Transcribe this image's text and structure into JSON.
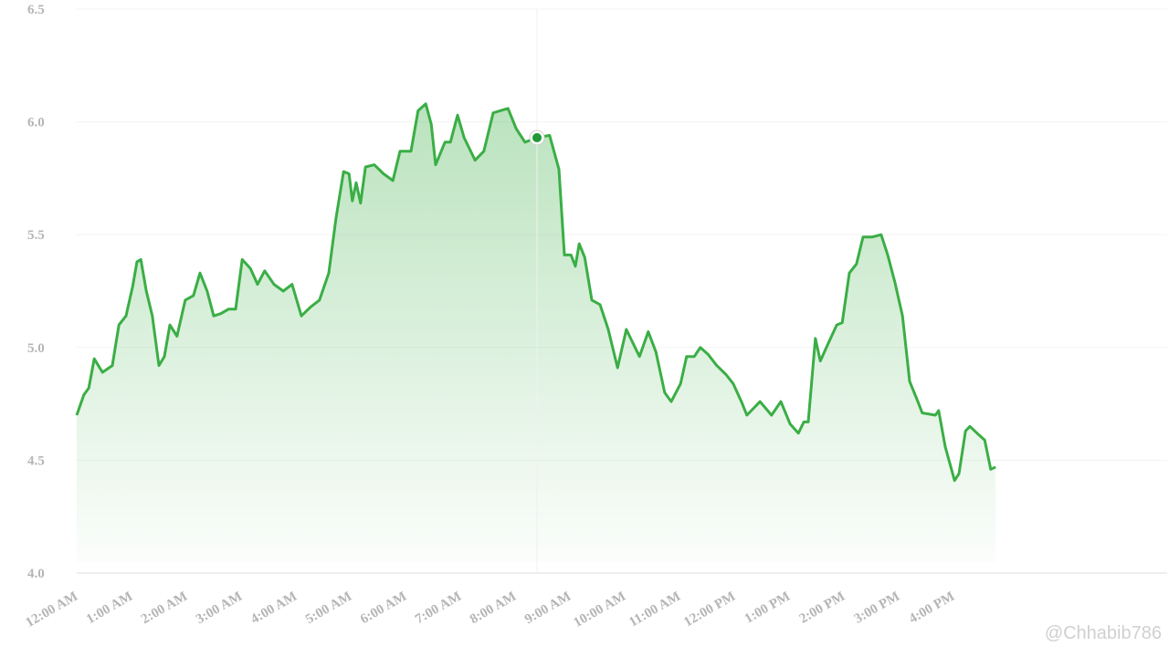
{
  "chart_data": {
    "type": "area",
    "series": [
      {
        "color": "#3aae45",
        "values": [
          4.7,
          4.79,
          4.82,
          4.95,
          4.89,
          4.92,
          5.1,
          5.14,
          5.27,
          5.38,
          5.39,
          5.25,
          5.14,
          4.92,
          4.96,
          5.1,
          5.05,
          5.21,
          5.23,
          5.33,
          5.25,
          5.14,
          5.15,
          5.17,
          5.17,
          5.39,
          5.35,
          5.28,
          5.34,
          5.28,
          5.25,
          5.28,
          5.14,
          5.18,
          5.21,
          5.33,
          5.57,
          5.78,
          5.77,
          5.65,
          5.73,
          5.64,
          5.8,
          5.81,
          5.77,
          5.74,
          5.87,
          5.87,
          6.05,
          6.08,
          5.99,
          5.81,
          5.91,
          5.91,
          6.03,
          5.93,
          5.83,
          5.87,
          6.04,
          6.06,
          5.97,
          5.91,
          5.93,
          5.94,
          5.79,
          5.41,
          5.41,
          5.36,
          5.46,
          5.4,
          5.21,
          5.19,
          5.08,
          4.91,
          5.08,
          5.02,
          4.96,
          5.07,
          4.98,
          4.8,
          4.76,
          4.84,
          4.96,
          4.96,
          5.0,
          4.97,
          4.92,
          4.88,
          4.84,
          4.76,
          4.7,
          4.76,
          4.7,
          4.76,
          4.66,
          4.62,
          4.67,
          4.67,
          5.04,
          4.94,
          5.01,
          5.1,
          5.11,
          5.33,
          5.37,
          5.49,
          5.49,
          5.5,
          5.41,
          5.29,
          5.14,
          4.85,
          4.76,
          4.71,
          4.7,
          4.72,
          4.56,
          4.41,
          4.44,
          4.63,
          4.65,
          4.62,
          4.59,
          4.46,
          4.47
        ]
      }
    ],
    "x": [
      0,
      0.13,
      0.22,
      0.32,
      0.47,
      0.65,
      0.77,
      0.9,
      1.02,
      1.1,
      1.17,
      1.27,
      1.38,
      1.5,
      1.6,
      1.7,
      1.83,
      1.98,
      2.13,
      2.25,
      2.38,
      2.5,
      2.63,
      2.77,
      2.9,
      3.02,
      3.17,
      3.3,
      3.43,
      3.6,
      3.77,
      3.93,
      4.1,
      4.27,
      4.43,
      4.6,
      4.73,
      4.87,
      4.97,
      5.03,
      5.1,
      5.18,
      5.27,
      5.43,
      5.6,
      5.77,
      5.9,
      6.1,
      6.23,
      6.37,
      6.47,
      6.55,
      6.72,
      6.82,
      6.95,
      7.07,
      7.27,
      7.43,
      7.6,
      7.87,
      8.02,
      8.18,
      8.4,
      8.63,
      8.8,
      8.9,
      9.02,
      9.1,
      9.17,
      9.27,
      9.4,
      9.55,
      9.7,
      9.87,
      10.03,
      10.15,
      10.27,
      10.43,
      10.57,
      10.73,
      10.85,
      11.02,
      11.13,
      11.27,
      11.38,
      11.52,
      11.68,
      11.85,
      11.98,
      12.13,
      12.23,
      12.47,
      12.68,
      12.85,
      13.02,
      13.17,
      13.27,
      13.35,
      13.48,
      13.57,
      13.7,
      13.87,
      13.97,
      14.1,
      14.23,
      14.35,
      14.52,
      14.68,
      14.8,
      14.93,
      15.07,
      15.2,
      15.35,
      15.43,
      15.67,
      15.73,
      15.85,
      16.02,
      16.1,
      16.22,
      16.3,
      16.43,
      16.57,
      16.68,
      16.77
    ],
    "xlim": [
      0,
      19.9
    ],
    "xticks": [
      {
        "value": 0,
        "label": "12:00 AM"
      },
      {
        "value": 1,
        "label": "1:00 AM"
      },
      {
        "value": 2,
        "label": "2:00 AM"
      },
      {
        "value": 3,
        "label": "3:00 AM"
      },
      {
        "value": 4,
        "label": "4:00 AM"
      },
      {
        "value": 5,
        "label": "5:00 AM"
      },
      {
        "value": 6,
        "label": "6:00 AM"
      },
      {
        "value": 7,
        "label": "7:00 AM"
      },
      {
        "value": 8,
        "label": "8:00 AM"
      },
      {
        "value": 9,
        "label": "9:00 AM"
      },
      {
        "value": 10,
        "label": "10:00 AM"
      },
      {
        "value": 11,
        "label": "11:00 AM"
      },
      {
        "value": 12,
        "label": "12:00 PM"
      },
      {
        "value": 13,
        "label": "1:00 PM"
      },
      {
        "value": 14,
        "label": "2:00 PM"
      },
      {
        "value": 15,
        "label": "3:00 PM"
      },
      {
        "value": 16,
        "label": "4:00 PM"
      }
    ],
    "ylim": [
      4,
      6.5
    ],
    "yticks": [
      {
        "value": 4,
        "label": "4.0"
      },
      4.5,
      {
        "value": 5,
        "label": "5.0"
      },
      5.5,
      {
        "value": 6,
        "label": "6.0"
      },
      6.5
    ],
    "grid": true,
    "highlight_index": 62,
    "watermark": "@Chhabib786"
  }
}
